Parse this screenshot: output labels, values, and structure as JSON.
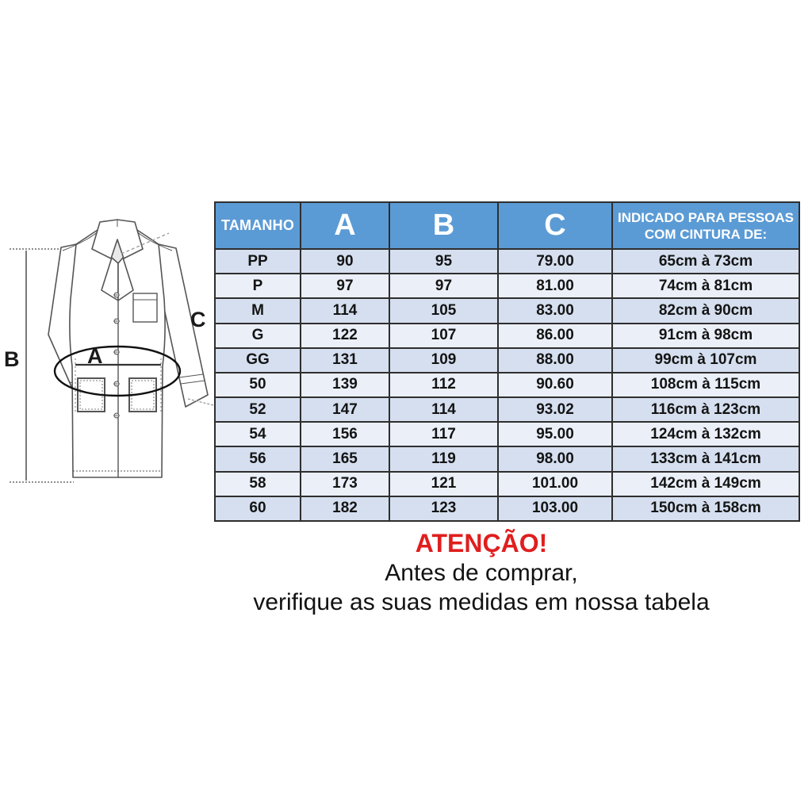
{
  "diagram": {
    "name": "lab-coat measurement diagram",
    "labels": {
      "a": "A",
      "b": "B",
      "c": "C"
    }
  },
  "table": {
    "columns": [
      "TAMANHO",
      "A",
      "B",
      "C",
      "INDICADO PARA PESSOAS COM CINTURA DE:"
    ],
    "rows": [
      [
        "PP",
        "90",
        "95",
        "79.00",
        "65cm à 73cm"
      ],
      [
        "P",
        "97",
        "97",
        "81.00",
        "74cm à 81cm"
      ],
      [
        "M",
        "114",
        "105",
        "83.00",
        "82cm à 90cm"
      ],
      [
        "G",
        "122",
        "107",
        "86.00",
        "91cm à 98cm"
      ],
      [
        "GG",
        "131",
        "109",
        "88.00",
        "99cm à 107cm"
      ],
      [
        "50",
        "139",
        "112",
        "90.60",
        "108cm à 115cm"
      ],
      [
        "52",
        "147",
        "114",
        "93.02",
        "116cm à 123cm"
      ],
      [
        "54",
        "156",
        "117",
        "95.00",
        "124cm à 132cm"
      ],
      [
        "56",
        "165",
        "119",
        "98.00",
        "133cm à 141cm"
      ],
      [
        "58",
        "173",
        "121",
        "101.00",
        "142cm à 149cm"
      ],
      [
        "60",
        "182",
        "123",
        "103.00",
        "150cm à 158cm"
      ]
    ]
  },
  "notice": {
    "title": "ATENÇÃO!",
    "line1": "Antes de comprar,",
    "line2": "verifique as suas medidas em nossa tabela"
  },
  "colors": {
    "header_bg": "#5B9BD5",
    "row_odd": "#D5DFEF",
    "row_even": "#EAEFF8",
    "border": "#2e2e2e",
    "warning_red": "#E01E1E"
  }
}
